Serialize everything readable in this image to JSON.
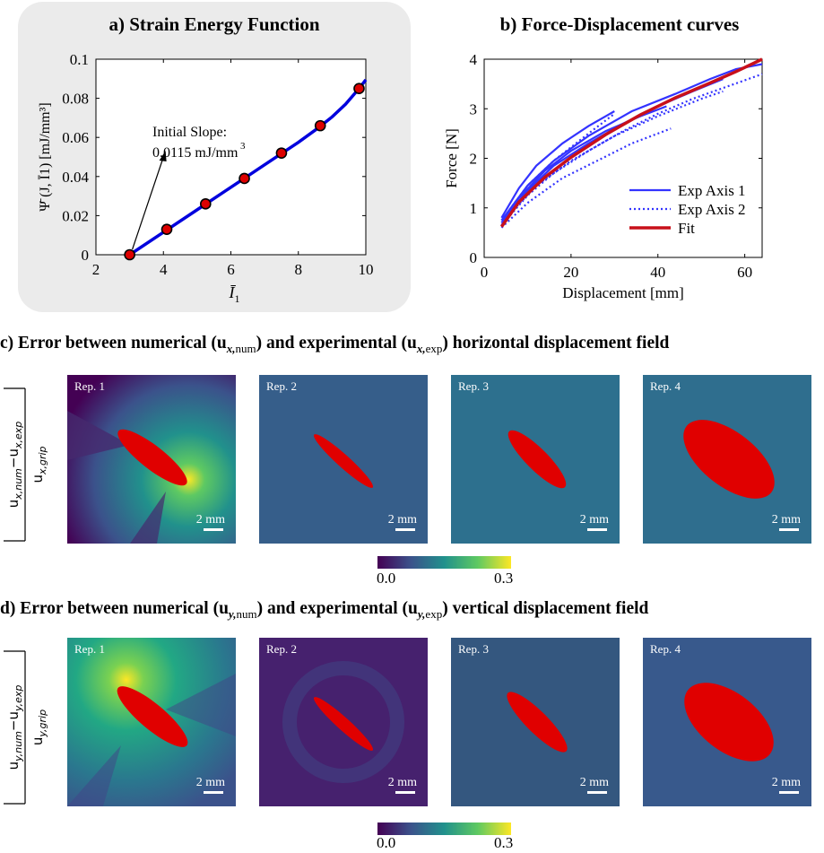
{
  "panel_a": {
    "title": "a) Strain Energy Function",
    "annotation_line1": "Initial Slope:",
    "annotation_value": "0.0115 mJ/mm",
    "annotation_exp": "3"
  },
  "panel_b": {
    "title": "b) Force-Displacement curves"
  },
  "section_c": {
    "title": "c) Error between numerical (u",
    "sub1": "x,",
    "sub1b": "num",
    "mid": ") and experimental (u",
    "sub2": "x,",
    "sub2b": "exp",
    "end": ") horizontal displacement field"
  },
  "section_d": {
    "title": "d) Error between numerical (u",
    "sub1": "y,",
    "sub1b": "num",
    "mid": ") and experimental (u",
    "sub2": "y,",
    "sub2b": "exp",
    "end": ") vertical displacement field"
  },
  "rep_labels": [
    "Rep. 1",
    "Rep. 2",
    "Rep. 3",
    "Rep. 4"
  ],
  "scale_bar": "2 mm",
  "colorbar": {
    "min": "0.0",
    "max": "0.3"
  },
  "ylabel_c": {
    "num": "u",
    "numsub": "x,num",
    "minus": "−",
    "exp": "u",
    "expsub": "x,exp",
    "den": "u",
    "densub": "x,grip"
  },
  "ylabel_d": {
    "num": "u",
    "numsub": "y,num",
    "minus": "−",
    "exp": "u",
    "expsub": "y,exp",
    "den": "u",
    "densub": "y,grip"
  },
  "colors": {
    "fit_curve": "#0000dd",
    "marker": "#dd0000",
    "exp": "#3333ff",
    "fit": "#c8101a",
    "cbar": [
      "#440154",
      "#3b528b",
      "#21918c",
      "#5ec962",
      "#fde725"
    ]
  },
  "chart_data": [
    {
      "type": "scatter",
      "title": "a) Strain Energy Function",
      "xlabel": "Ī1",
      "ylabel": "Ψ̄ (J, Ī1) [mJ/mm³]",
      "xlim": [
        2,
        10
      ],
      "ylim": [
        0,
        0.1
      ],
      "xticks": [
        2,
        4,
        6,
        8,
        10
      ],
      "yticks": [
        0,
        0.02,
        0.04,
        0.06,
        0.08,
        0.1
      ],
      "ytick_labels": [
        "0",
        "0.02",
        "0.04",
        "0.06",
        "0.08",
        "0.1"
      ],
      "points": {
        "x": [
          3.0,
          4.1,
          5.25,
          6.4,
          7.5,
          8.65,
          9.8
        ],
        "y": [
          0.0,
          0.013,
          0.026,
          0.039,
          0.052,
          0.066,
          0.085
        ]
      },
      "fit_curve": {
        "x": [
          3.0,
          4.0,
          5.0,
          6.0,
          7.0,
          8.0,
          8.6,
          9.0,
          9.4,
          9.8,
          10.0
        ],
        "y": [
          0.0,
          0.0115,
          0.023,
          0.0345,
          0.046,
          0.0575,
          0.065,
          0.0705,
          0.077,
          0.085,
          0.0895
        ]
      }
    },
    {
      "type": "line",
      "title": "b) Force-Displacement curves",
      "xlabel": "Displacement [mm]",
      "ylabel": "Force [N]",
      "xlim": [
        0,
        64
      ],
      "ylim": [
        0,
        4
      ],
      "xticks": [
        0,
        20,
        40,
        60
      ],
      "yticks": [
        0,
        1,
        2,
        3,
        4
      ],
      "legend": [
        "Exp Axis 1",
        "Exp Axis 2",
        "Fit"
      ],
      "legend_position": "bottom-right",
      "series": [
        {
          "name": "Exp Axis 1",
          "style": "solid",
          "x": [
            4,
            8,
            12,
            18,
            24,
            30
          ],
          "y": [
            0.8,
            1.4,
            1.85,
            2.3,
            2.65,
            2.95
          ]
        },
        {
          "name": "Exp Axis 1",
          "style": "solid",
          "x": [
            4,
            10,
            16,
            24,
            32,
            40,
            48,
            55
          ],
          "y": [
            0.7,
            1.35,
            1.85,
            2.3,
            2.7,
            3.05,
            3.35,
            3.6
          ]
        },
        {
          "name": "Exp Axis 1",
          "style": "solid",
          "x": [
            4,
            10,
            16,
            24,
            34,
            44,
            52,
            58,
            64
          ],
          "y": [
            0.75,
            1.45,
            1.95,
            2.45,
            2.95,
            3.3,
            3.6,
            3.8,
            3.9
          ]
        },
        {
          "name": "Exp Axis 1",
          "style": "solid",
          "x": [
            4,
            8,
            14,
            20,
            28,
            36,
            42
          ],
          "y": [
            0.65,
            1.2,
            1.75,
            2.15,
            2.55,
            2.85,
            3.05
          ]
        },
        {
          "name": "Exp Axis 2",
          "style": "dotted",
          "x": [
            4,
            10,
            16,
            24,
            30
          ],
          "y": [
            0.75,
            1.45,
            1.95,
            2.5,
            2.9
          ]
        },
        {
          "name": "Exp Axis 2",
          "style": "dotted",
          "x": [
            4,
            10,
            16,
            24,
            32,
            40,
            48,
            56,
            64
          ],
          "y": [
            0.65,
            1.25,
            1.7,
            2.15,
            2.55,
            2.9,
            3.2,
            3.45,
            3.7
          ]
        },
        {
          "name": "Exp Axis 2",
          "style": "dotted",
          "x": [
            4,
            10,
            18,
            26,
            34,
            43
          ],
          "y": [
            0.6,
            1.1,
            1.6,
            1.95,
            2.3,
            2.6
          ]
        },
        {
          "name": "Exp Axis 2",
          "style": "dotted",
          "x": [
            4,
            12,
            20,
            30,
            40,
            50,
            55
          ],
          "y": [
            0.7,
            1.45,
            1.95,
            2.45,
            2.85,
            3.2,
            3.35
          ]
        },
        {
          "name": "Fit",
          "style": "solid-thick",
          "x": [
            4,
            8,
            14,
            20,
            28,
            36,
            44,
            52,
            58,
            64
          ],
          "y": [
            0.62,
            1.12,
            1.62,
            2.02,
            2.48,
            2.88,
            3.22,
            3.52,
            3.75,
            4.0
          ]
        }
      ]
    }
  ]
}
